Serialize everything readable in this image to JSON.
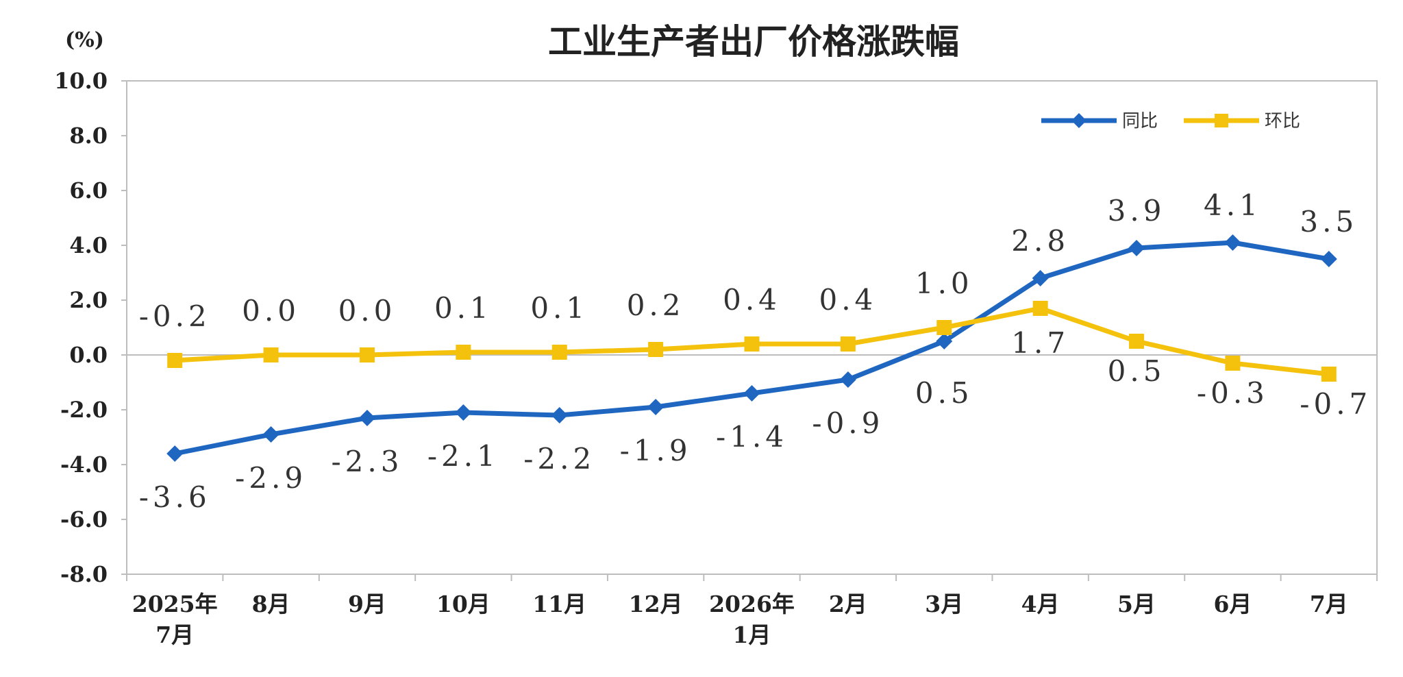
{
  "chart_data": {
    "type": "line",
    "title": "工业生产者出厂价格涨跌幅",
    "unit": "(%)",
    "categories": [
      [
        "2025年",
        "7月"
      ],
      [
        "8月"
      ],
      [
        "9月"
      ],
      [
        "10月"
      ],
      [
        "11月"
      ],
      [
        "12月"
      ],
      [
        "2026年",
        "1月"
      ],
      [
        "2月"
      ],
      [
        "3月"
      ],
      [
        "4月"
      ],
      [
        "5月"
      ],
      [
        "6月"
      ],
      [
        "7月"
      ]
    ],
    "yticks": [
      "10.0",
      "8.0",
      "6.0",
      "4.0",
      "2.0",
      "0.0",
      "-2.0",
      "-4.0",
      "-6.0",
      "-8.0"
    ],
    "ylim": [
      -8,
      10
    ],
    "grid": false,
    "legend_position": "top-right",
    "series": [
      {
        "name": "同比",
        "color": "#1f66c1",
        "marker": "diamond",
        "values": [
          -3.6,
          -2.9,
          -2.3,
          -2.1,
          -2.2,
          -1.9,
          -1.4,
          -0.9,
          0.5,
          2.8,
          3.9,
          4.1,
          3.5
        ],
        "labels": [
          "-3.6",
          "-2.9",
          "-2.3",
          "-2.1",
          "-2.2",
          "-1.9",
          "-1.4",
          "-0.9",
          "0.5",
          "2.8",
          "3.9",
          "4.1",
          "3.5"
        ]
      },
      {
        "name": "环比",
        "color": "#f4c20d",
        "marker": "square",
        "values": [
          -0.2,
          0.0,
          0.0,
          0.1,
          0.1,
          0.2,
          0.4,
          0.4,
          1.0,
          1.7,
          0.5,
          -0.3,
          -0.7
        ],
        "labels": [
          "-0.2",
          "0.0",
          "0.0",
          "0.1",
          "0.1",
          "0.2",
          "0.4",
          "0.4",
          "1.0",
          "1.7",
          "0.5",
          "-0.3",
          "-0.7"
        ]
      }
    ]
  }
}
